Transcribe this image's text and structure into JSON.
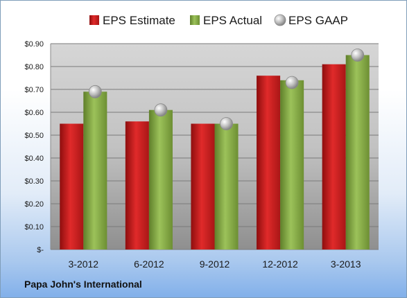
{
  "chart_data": {
    "type": "bar",
    "categories": [
      "3-2012",
      "6-2012",
      "9-2012",
      "12-2012",
      "3-2013"
    ],
    "series": [
      {
        "name": "EPS Estimate",
        "type": "bar",
        "color": "#cc1f1f",
        "values": [
          0.55,
          0.56,
          0.55,
          0.76,
          0.81
        ]
      },
      {
        "name": "EPS Actual",
        "type": "bar",
        "color": "#8cb04a",
        "values": [
          0.69,
          0.61,
          0.55,
          0.74,
          0.85
        ]
      },
      {
        "name": "EPS GAAP",
        "type": "scatter",
        "color": "#b4b4b4",
        "values": [
          0.69,
          0.61,
          0.55,
          0.73,
          0.85
        ]
      }
    ],
    "ylim": [
      0,
      0.9
    ],
    "yticks": [
      {
        "value": 0,
        "label": "$-"
      },
      {
        "value": 0.1,
        "label": "$0.10"
      },
      {
        "value": 0.2,
        "label": "$0.20"
      },
      {
        "value": 0.3,
        "label": "$0.30"
      },
      {
        "value": 0.4,
        "label": "$0.40"
      },
      {
        "value": 0.5,
        "label": "$0.50"
      },
      {
        "value": 0.6,
        "label": "$0.60"
      },
      {
        "value": 0.7,
        "label": "$0.70"
      },
      {
        "value": 0.8,
        "label": "$0.80"
      },
      {
        "value": 0.9,
        "label": "$0.90"
      }
    ],
    "grid": true,
    "legend_position": "top",
    "company": "Papa John's International"
  }
}
